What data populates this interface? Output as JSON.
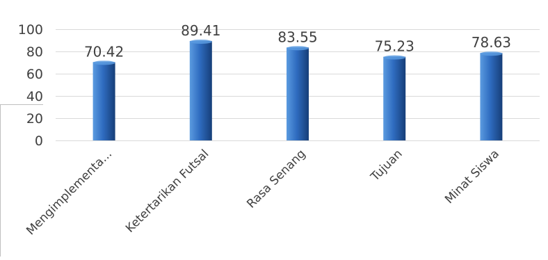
{
  "chart_data": {
    "type": "bar",
    "categories": [
      "Mengimplementa...",
      "Ketertarikan Futsal",
      "Rasa Senang",
      "Tujuan",
      "Minat Siswa"
    ],
    "values": [
      70.42,
      89.41,
      83.55,
      75.23,
      78.63
    ],
    "data_labels": [
      "70.42",
      "89.41",
      "83.55",
      "75.23",
      "78.63"
    ],
    "yticks": [
      "0",
      "20",
      "40",
      "60",
      "80",
      "100"
    ],
    "ylim": [
      0,
      100
    ],
    "ytick_step": 20,
    "grid": true,
    "legend": "none",
    "colors": {
      "bar_light": "#5b9be0",
      "bar_mid": "#2f6cc0",
      "bar_dark": "#163e78",
      "grid": "#d9d9d9",
      "text": "#404040"
    }
  }
}
